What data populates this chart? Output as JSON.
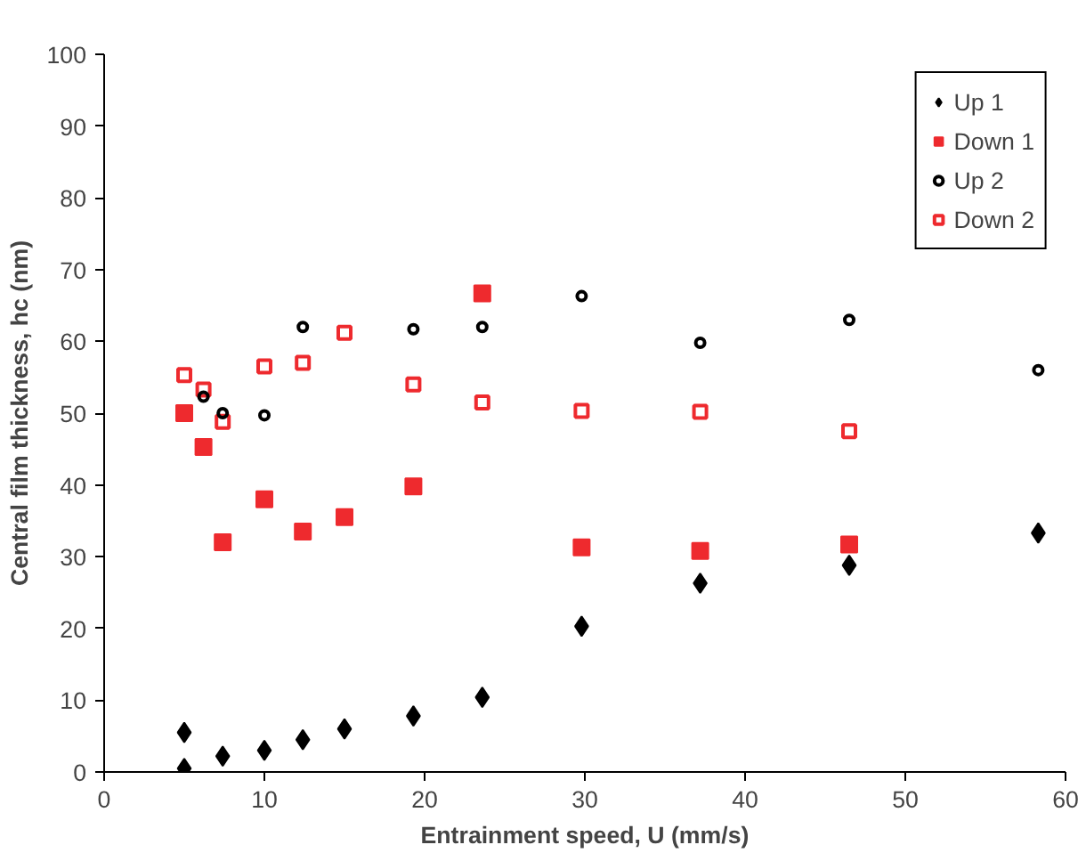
{
  "chart_data": {
    "type": "scatter",
    "xlabel": "Entrainment speed, U (mm/s)",
    "ylabel": "Central film thickness, hc (nm)",
    "xlim": [
      0,
      60
    ],
    "ylim": [
      0,
      100
    ],
    "xticks": [
      0,
      10,
      20,
      30,
      40,
      50,
      60
    ],
    "yticks": [
      0,
      10,
      20,
      30,
      40,
      50,
      60,
      70,
      80,
      90,
      100
    ],
    "grid": false,
    "legend": "top right",
    "series": [
      {
        "name": "Up 1",
        "color": "#000000",
        "marker": "diamond",
        "x": [
          5,
          5,
          7.4,
          10,
          12.4,
          15,
          19.3,
          23.6,
          29.8,
          37.2,
          46.5,
          58.3
        ],
        "values": [
          5.5,
          0.5,
          2.2,
          3,
          4.5,
          6,
          7.8,
          10.4,
          20.3,
          26.3,
          28.8,
          33.3
        ]
      },
      {
        "name": "Down 1",
        "color": "#ee2a2e",
        "marker": "square",
        "x": [
          5,
          6.2,
          7.4,
          10,
          12.4,
          15,
          19.3,
          23.6,
          29.8,
          37.2,
          46.5
        ],
        "values": [
          50,
          45.3,
          32,
          38,
          33.5,
          35.5,
          39.8,
          66.7,
          31.3,
          30.8,
          31.7
        ]
      },
      {
        "name": "Up 2",
        "color": "#000000",
        "marker": "circle",
        "x": [
          6.2,
          7.4,
          10,
          12.4,
          19.3,
          23.6,
          29.8,
          37.2,
          46.5,
          58.3
        ],
        "values": [
          52.3,
          50,
          49.7,
          62,
          61.7,
          62,
          66.3,
          59.8,
          63,
          56
        ]
      },
      {
        "name": "Down 2",
        "color": "#ee2a2e",
        "marker": "square",
        "x": [
          5,
          6.2,
          7.4,
          10,
          12.4,
          15,
          19.3,
          23.6,
          29.8,
          37.2,
          46.5
        ],
        "values": [
          55.3,
          53.3,
          48.8,
          56.5,
          57,
          61.2,
          54,
          51.5,
          50.3,
          50.2,
          47.5
        ]
      }
    ]
  }
}
